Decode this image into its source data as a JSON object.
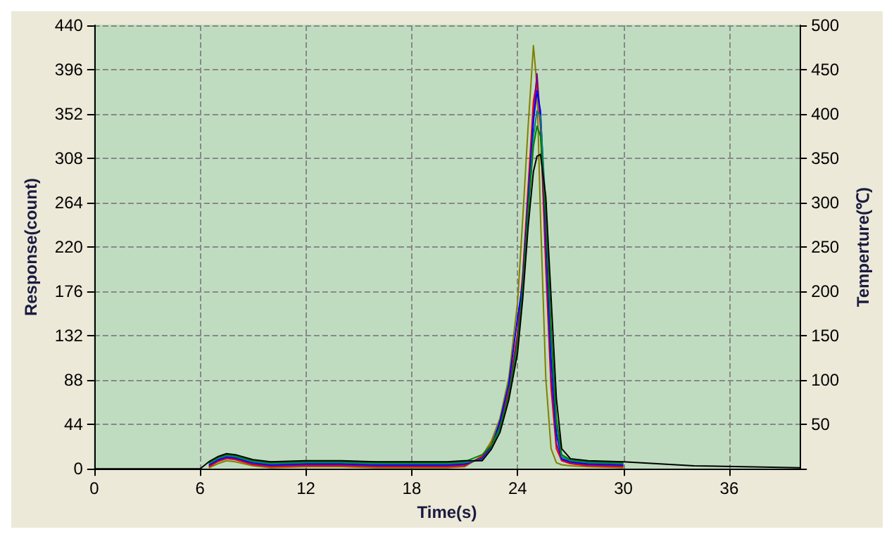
{
  "chart_data": {
    "type": "line",
    "xlabel": "Time(s)",
    "ylabel": "Response(count)",
    "y2label": "Temperture(℃)",
    "x": [
      0,
      6,
      6.5,
      7,
      7.5,
      8,
      9,
      10,
      12,
      14,
      16,
      18,
      20,
      21,
      22,
      22.5,
      23,
      23.5,
      24,
      24.3,
      24.6,
      24.9,
      25.1,
      25.3,
      25.6,
      25.9,
      26.2,
      26.5,
      27,
      28,
      30,
      34,
      40
    ],
    "series": [
      {
        "color": "#808000",
        "values": [
          null,
          null,
          1,
          5,
          8,
          7,
          3,
          1,
          2,
          2,
          1,
          1,
          1,
          2,
          13,
          27,
          50,
          90,
          165,
          250,
          340,
          420,
          380,
          250,
          90,
          20,
          6,
          4,
          3,
          2,
          1,
          null,
          null
        ]
      },
      {
        "color": "#ff0000",
        "values": [
          null,
          null,
          2,
          7,
          10,
          9,
          4,
          2,
          3,
          3,
          2,
          2,
          2,
          3,
          12,
          24,
          44,
          78,
          135,
          195,
          280,
          365,
          385,
          340,
          200,
          80,
          20,
          8,
          5,
          3,
          2,
          null,
          null
        ]
      },
      {
        "color": "#800080",
        "values": [
          null,
          null,
          3,
          8,
          11,
          10,
          5,
          3,
          4,
          4,
          3,
          3,
          3,
          4,
          11,
          22,
          42,
          75,
          130,
          190,
          270,
          350,
          392,
          345,
          210,
          90,
          25,
          9,
          6,
          4,
          3,
          null,
          null
        ]
      },
      {
        "color": "#0000ff",
        "values": [
          null,
          null,
          4,
          9,
          12,
          11,
          6,
          4,
          5,
          5,
          4,
          4,
          4,
          5,
          10,
          21,
          47,
          84,
          150,
          185,
          265,
          345,
          375,
          355,
          240,
          110,
          35,
          10,
          7,
          5,
          4,
          null,
          null
        ]
      },
      {
        "color": "#008080",
        "values": [
          null,
          null,
          5,
          10,
          13,
          12,
          7,
          5,
          6,
          6,
          5,
          5,
          5,
          6,
          9,
          20,
          38,
          70,
          120,
          180,
          255,
          330,
          355,
          350,
          260,
          130,
          45,
          12,
          8,
          6,
          5,
          null,
          null
        ]
      },
      {
        "color": "#008000",
        "values": [
          null,
          null,
          6,
          11,
          14,
          13,
          8,
          6,
          7,
          7,
          6,
          6,
          6,
          7,
          14,
          23,
          41,
          73,
          125,
          180,
          255,
          320,
          340,
          330,
          250,
          140,
          50,
          14,
          9,
          7,
          6,
          null,
          null
        ]
      },
      {
        "color": "#000000",
        "values": [
          0,
          0,
          7,
          12,
          15,
          14,
          9,
          7,
          8,
          8,
          7,
          7,
          7,
          8,
          8,
          19,
          36,
          68,
          115,
          170,
          240,
          295,
          310,
          312,
          270,
          170,
          70,
          20,
          10,
          8,
          7,
          3,
          1
        ]
      }
    ],
    "xlim": [
      0,
      40
    ],
    "xticks": [
      0,
      6,
      12,
      18,
      24,
      30,
      36
    ],
    "ylim": [
      0,
      440
    ],
    "yticks": [
      0,
      44,
      88,
      132,
      176,
      220,
      264,
      308,
      352,
      396,
      440
    ],
    "y2lim": [
      0,
      500
    ],
    "y2ticks": [
      {
        "value": 0,
        "label": null
      },
      50,
      100,
      150,
      200,
      250,
      300,
      350,
      400,
      450,
      500
    ],
    "grid": true,
    "marker": "none",
    "line_style": "solid"
  }
}
